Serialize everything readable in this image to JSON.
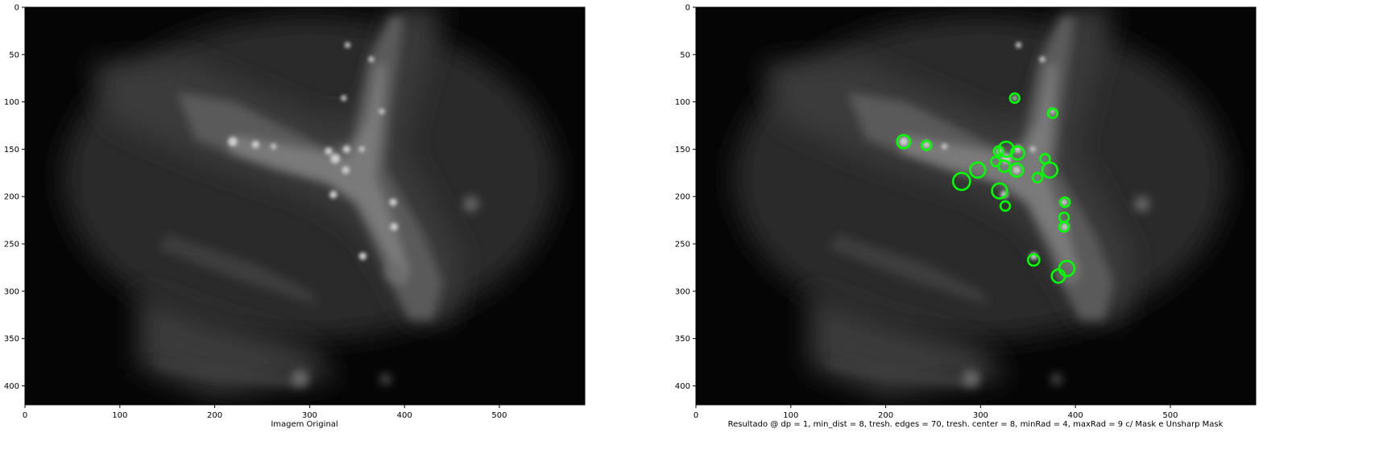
{
  "panels": [
    {
      "id": "original",
      "caption": "Imagem Original",
      "x_ticks": [
        "0",
        "100",
        "200",
        "300",
        "400",
        "500"
      ],
      "y_ticks": [
        "0",
        "50",
        "100",
        "150",
        "200",
        "250",
        "300",
        "350",
        "400"
      ],
      "circles": []
    },
    {
      "id": "result",
      "caption": "Resultado @ dp = 1, min_dist = 8, tresh. edges  = 70, tresh. center = 8, minRad = 4, maxRad = 9 c/ Mask e Unsharp Mask",
      "x_ticks": [
        "0",
        "100",
        "200",
        "300",
        "400",
        "500"
      ],
      "y_ticks": [
        "0",
        "50",
        "100",
        "150",
        "200",
        "250",
        "300",
        "350",
        "400"
      ],
      "circle_color": "#00ff00",
      "circles": [
        {
          "x": 336,
          "y": 96,
          "r": 5
        },
        {
          "x": 376,
          "y": 112,
          "r": 5
        },
        {
          "x": 219,
          "y": 142,
          "r": 7
        },
        {
          "x": 243,
          "y": 146,
          "r": 5
        },
        {
          "x": 319,
          "y": 152,
          "r": 5
        },
        {
          "x": 327,
          "y": 150,
          "r": 8
        },
        {
          "x": 339,
          "y": 154,
          "r": 7
        },
        {
          "x": 316,
          "y": 163,
          "r": 5
        },
        {
          "x": 325,
          "y": 168,
          "r": 6
        },
        {
          "x": 338,
          "y": 172,
          "r": 7
        },
        {
          "x": 368,
          "y": 160,
          "r": 5
        },
        {
          "x": 373,
          "y": 172,
          "r": 8
        },
        {
          "x": 360,
          "y": 180,
          "r": 5
        },
        {
          "x": 297,
          "y": 172,
          "r": 8
        },
        {
          "x": 280,
          "y": 184,
          "r": 9
        },
        {
          "x": 320,
          "y": 194,
          "r": 8
        },
        {
          "x": 326,
          "y": 210,
          "r": 5
        },
        {
          "x": 389,
          "y": 206,
          "r": 5
        },
        {
          "x": 388,
          "y": 222,
          "r": 5
        },
        {
          "x": 388,
          "y": 232,
          "r": 5
        },
        {
          "x": 356,
          "y": 267,
          "r": 6
        },
        {
          "x": 391,
          "y": 276,
          "r": 8
        },
        {
          "x": 382,
          "y": 284,
          "r": 7
        }
      ]
    }
  ]
}
